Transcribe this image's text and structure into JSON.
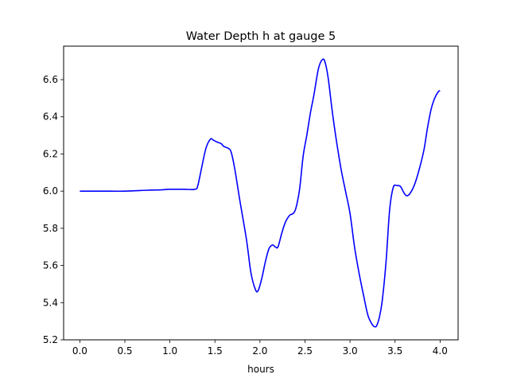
{
  "chart_data": {
    "type": "line",
    "title": "Water Depth h at gauge 5",
    "xlabel": "hours",
    "ylabel": "",
    "xlim": [
      -0.18,
      4.2
    ],
    "ylim": [
      5.2,
      6.78
    ],
    "xticks": [
      0.0,
      0.5,
      1.0,
      1.5,
      2.0,
      2.5,
      3.0,
      3.5,
      4.0
    ],
    "xtick_labels": [
      "0.0",
      "0.5",
      "1.0",
      "1.5",
      "2.0",
      "2.5",
      "3.0",
      "3.5",
      "4.0"
    ],
    "yticks": [
      5.2,
      5.4,
      5.6,
      5.8,
      6.0,
      6.2,
      6.4,
      6.6
    ],
    "ytick_labels": [
      "5.2",
      "5.4",
      "5.6",
      "5.8",
      "6.0",
      "6.2",
      "6.4",
      "6.6"
    ],
    "grid": false,
    "series": [
      {
        "color": "#0000ff",
        "x": [
          0.0,
          0.25,
          0.5,
          0.75,
          0.9,
          1.0,
          1.15,
          1.28,
          1.31,
          1.35,
          1.4,
          1.45,
          1.48,
          1.52,
          1.57,
          1.6,
          1.65,
          1.68,
          1.72,
          1.78,
          1.85,
          1.9,
          1.95,
          1.98,
          2.02,
          2.06,
          2.1,
          2.14,
          2.17,
          2.2,
          2.24,
          2.28,
          2.33,
          2.37,
          2.4,
          2.44,
          2.48,
          2.52,
          2.56,
          2.6,
          2.65,
          2.7,
          2.73,
          2.76,
          2.8,
          2.84,
          2.9,
          2.95,
          3.0,
          3.05,
          3.1,
          3.15,
          3.2,
          3.25,
          3.28,
          3.3,
          3.33,
          3.36,
          3.4,
          3.44,
          3.48,
          3.52,
          3.56,
          3.6,
          3.63,
          3.67,
          3.72,
          3.77,
          3.82,
          3.86,
          3.9,
          3.94,
          3.98,
          4.0
        ],
        "y": [
          6.0,
          6.0,
          6.0,
          6.005,
          6.007,
          6.01,
          6.01,
          6.01,
          6.03,
          6.12,
          6.23,
          6.28,
          6.275,
          6.265,
          6.255,
          6.24,
          6.23,
          6.21,
          6.12,
          5.94,
          5.74,
          5.56,
          5.47,
          5.465,
          5.53,
          5.62,
          5.69,
          5.71,
          5.7,
          5.7,
          5.77,
          5.83,
          5.87,
          5.88,
          5.91,
          6.01,
          6.19,
          6.3,
          6.42,
          6.52,
          6.66,
          6.71,
          6.68,
          6.6,
          6.44,
          6.3,
          6.12,
          6.0,
          5.88,
          5.7,
          5.56,
          5.44,
          5.33,
          5.28,
          5.27,
          5.28,
          5.33,
          5.42,
          5.62,
          5.9,
          6.02,
          6.03,
          6.025,
          5.99,
          5.975,
          5.99,
          6.04,
          6.12,
          6.22,
          6.34,
          6.44,
          6.5,
          6.535,
          6.54
        ]
      }
    ]
  }
}
